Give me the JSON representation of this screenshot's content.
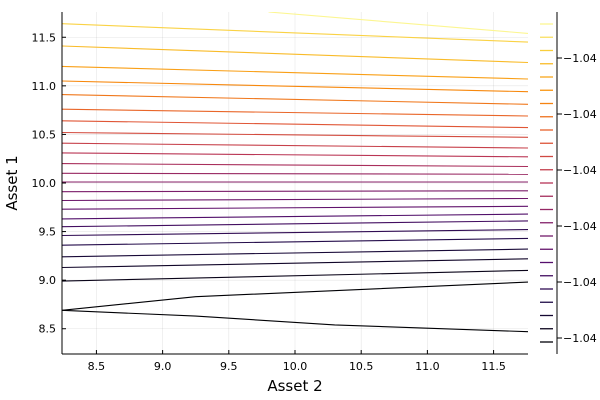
{
  "chart_data": {
    "type": "contour",
    "title": "",
    "xlabel": "Asset 2",
    "ylabel": "Asset 1",
    "xlim": [
      8.24,
      11.76
    ],
    "ylim": [
      8.24,
      11.76
    ],
    "x_ticks": [
      {
        "value": 8.5,
        "label": "8.5"
      },
      {
        "value": 9.0,
        "label": "9.0"
      },
      {
        "value": 9.5,
        "label": "9.5"
      },
      {
        "value": 10.0,
        "label": "10.0"
      },
      {
        "value": 10.5,
        "label": "10.5"
      },
      {
        "value": 11.0,
        "label": "11.0"
      },
      {
        "value": 11.5,
        "label": "11.5"
      }
    ],
    "y_ticks": [
      {
        "value": 8.5,
        "label": "8.5"
      },
      {
        "value": 9.0,
        "label": "9.0"
      },
      {
        "value": 9.5,
        "label": "9.5"
      },
      {
        "value": 10.0,
        "label": "10.0"
      },
      {
        "value": 10.5,
        "label": "10.5"
      },
      {
        "value": 11.0,
        "label": "11.0"
      },
      {
        "value": 11.5,
        "label": "11.5"
      }
    ],
    "grid": true,
    "colormap": "inferno",
    "colorbar": {
      "tick_labels": [
        "−1.04",
        "−1.04",
        "−1.04",
        "−1.04",
        "−1.04",
        "−1.04"
      ],
      "levels": 25
    },
    "contours": [
      {
        "t": 0.0,
        "points": [
          [
            8.24,
            8.69
          ],
          [
            9.25,
            8.83
          ],
          [
            11.76,
            8.98
          ]
        ]
      },
      {
        "t": 0.0,
        "points": [
          [
            8.24,
            8.69
          ],
          [
            9.25,
            8.63
          ],
          [
            10.3,
            8.54
          ],
          [
            11.76,
            8.47
          ]
        ]
      },
      {
        "t": 0.04,
        "points": [
          [
            8.24,
            8.99
          ],
          [
            11.76,
            9.1
          ]
        ]
      },
      {
        "t": 0.07,
        "points": [
          [
            8.24,
            9.13
          ],
          [
            11.76,
            9.22
          ]
        ]
      },
      {
        "t": 0.1,
        "points": [
          [
            8.24,
            9.24
          ],
          [
            11.76,
            9.32
          ]
        ]
      },
      {
        "t": 0.14,
        "points": [
          [
            8.24,
            9.36
          ],
          [
            11.76,
            9.43
          ]
        ]
      },
      {
        "t": 0.17,
        "points": [
          [
            8.24,
            9.46
          ],
          [
            11.76,
            9.52
          ]
        ]
      },
      {
        "t": 0.21,
        "points": [
          [
            8.24,
            9.55
          ],
          [
            11.76,
            9.61
          ]
        ]
      },
      {
        "t": 0.24,
        "points": [
          [
            8.24,
            9.63
          ],
          [
            11.76,
            9.68
          ]
        ]
      },
      {
        "t": 0.28,
        "points": [
          [
            8.24,
            9.73
          ],
          [
            11.76,
            9.76
          ]
        ]
      },
      {
        "t": 0.31,
        "points": [
          [
            8.24,
            9.82
          ],
          [
            11.76,
            9.84
          ]
        ]
      },
      {
        "t": 0.35,
        "points": [
          [
            8.24,
            9.91
          ],
          [
            11.76,
            9.92
          ]
        ]
      },
      {
        "t": 0.38,
        "points": [
          [
            8.24,
            10.01
          ],
          [
            11.76,
            10.01
          ]
        ]
      },
      {
        "t": 0.42,
        "points": [
          [
            8.24,
            10.1
          ],
          [
            11.76,
            10.09
          ]
        ]
      },
      {
        "t": 0.46,
        "points": [
          [
            8.24,
            10.2
          ],
          [
            11.76,
            10.17
          ]
        ]
      },
      {
        "t": 0.5,
        "points": [
          [
            8.24,
            10.31
          ],
          [
            11.76,
            10.27
          ]
        ]
      },
      {
        "t": 0.54,
        "points": [
          [
            8.24,
            10.41
          ],
          [
            11.76,
            10.36
          ]
        ]
      },
      {
        "t": 0.58,
        "points": [
          [
            8.24,
            10.52
          ],
          [
            11.76,
            10.47
          ]
        ]
      },
      {
        "t": 0.62,
        "points": [
          [
            8.24,
            10.64
          ],
          [
            11.76,
            10.57
          ]
        ]
      },
      {
        "t": 0.66,
        "points": [
          [
            8.24,
            10.76
          ],
          [
            11.76,
            10.69
          ]
        ]
      },
      {
        "t": 0.7,
        "points": [
          [
            8.24,
            10.91
          ],
          [
            11.76,
            10.81
          ]
        ]
      },
      {
        "t": 0.74,
        "points": [
          [
            8.24,
            11.05
          ],
          [
            11.76,
            10.94
          ]
        ]
      },
      {
        "t": 0.79,
        "points": [
          [
            8.24,
            11.2
          ],
          [
            11.76,
            11.07
          ]
        ]
      },
      {
        "t": 0.85,
        "points": [
          [
            8.24,
            11.41
          ],
          [
            11.76,
            11.24
          ]
        ]
      },
      {
        "t": 0.9,
        "points": [
          [
            8.24,
            11.64
          ],
          [
            11.76,
            11.45
          ]
        ]
      },
      {
        "t": 0.98,
        "points": [
          [
            9.8,
            11.76
          ],
          [
            11.76,
            11.54
          ]
        ]
      }
    ],
    "colorbar_swatches": [
      0.98,
      0.93,
      0.89,
      0.85,
      0.81,
      0.77,
      0.73,
      0.69,
      0.65,
      0.61,
      0.57,
      0.53,
      0.49,
      0.45,
      0.41,
      0.37,
      0.33,
      0.29,
      0.25,
      0.21,
      0.17,
      0.13,
      0.09,
      0.05,
      0.01
    ]
  }
}
